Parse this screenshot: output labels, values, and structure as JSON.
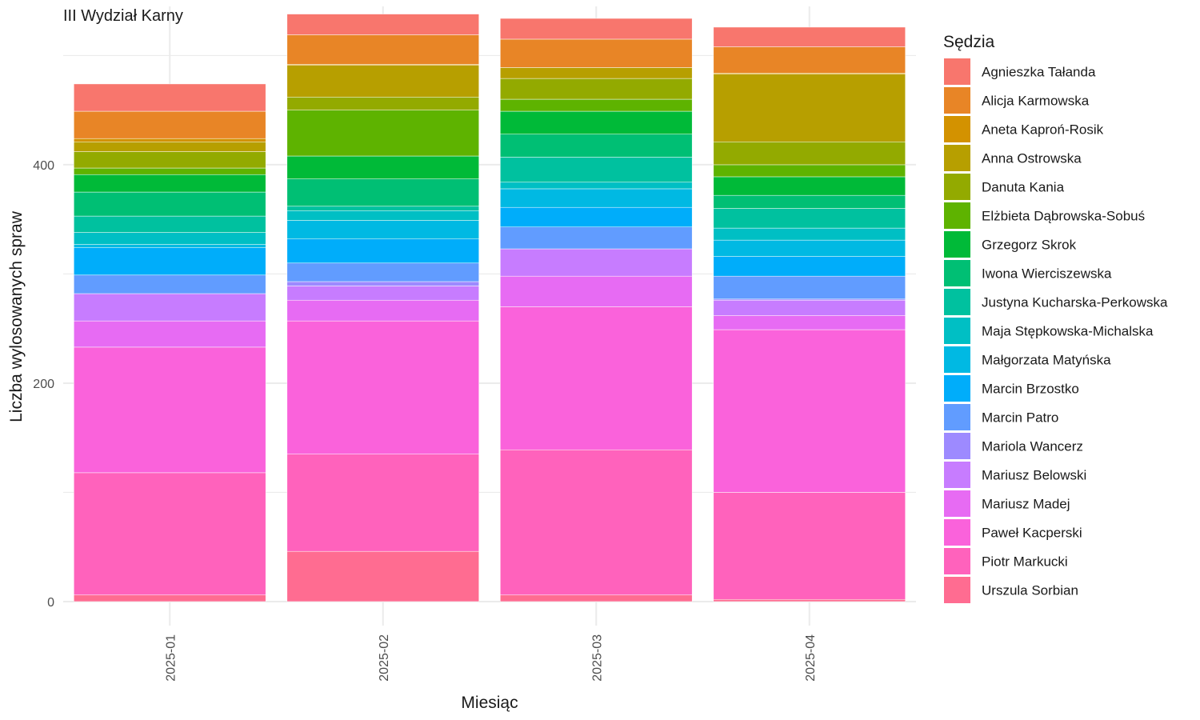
{
  "chart_data": {
    "type": "bar",
    "stacked": true,
    "title": "III Wydział Karny",
    "xlabel": "Miesiąc",
    "ylabel": "Liczba wylosowanych spraw",
    "categories": [
      "2025-01",
      "2025-02",
      "2025-03",
      "2025-04"
    ],
    "ylim": [
      -22,
      545
    ],
    "yticks": [
      0,
      200,
      400
    ],
    "grid": true,
    "legend": {
      "title": "Sędzia",
      "position": "right"
    },
    "series": [
      {
        "name": "Agnieszka Tałanda",
        "color": "#F8766D",
        "values": [
          25,
          19,
          19,
          18
        ]
      },
      {
        "name": "Alicja Karmowska",
        "color": "#E88526",
        "values": [
          25,
          27,
          26,
          24
        ]
      },
      {
        "name": "Aneta Kaproń-Rosik",
        "color": "#D39200",
        "values": [
          3,
          1,
          0,
          1
        ]
      },
      {
        "name": "Anna Ostrowska",
        "color": "#B79F00",
        "values": [
          9,
          29,
          10,
          62
        ]
      },
      {
        "name": "Danuta Kania",
        "color": "#93AA00",
        "values": [
          15,
          12,
          19,
          21
        ]
      },
      {
        "name": "Elżbieta Dąbrowska-Sobuś",
        "color": "#5EB300",
        "values": [
          6,
          42,
          11,
          11
        ]
      },
      {
        "name": "Grzegorz Skrok",
        "color": "#00BA38",
        "values": [
          16,
          21,
          21,
          17
        ]
      },
      {
        "name": "Iwona Wierciszewska",
        "color": "#00BF74",
        "values": [
          22,
          25,
          21,
          12
        ]
      },
      {
        "name": "Justyna Kucharska-Perkowska",
        "color": "#00C19F",
        "values": [
          15,
          4,
          23,
          18
        ]
      },
      {
        "name": "Maja Stępkowska-Michalska",
        "color": "#00BFC4",
        "values": [
          11,
          9,
          6,
          11
        ]
      },
      {
        "name": "Małgorzata Matyńska",
        "color": "#00B9E3",
        "values": [
          3,
          17,
          17,
          15
        ]
      },
      {
        "name": "Marcin Brzostko",
        "color": "#00ADFA",
        "values": [
          25,
          22,
          18,
          18
        ]
      },
      {
        "name": "Marcin Patro",
        "color": "#619CFF",
        "values": [
          17,
          17,
          20,
          21
        ]
      },
      {
        "name": "Mariola Wancerz",
        "color": "#9D8AFF",
        "values": [
          0,
          4,
          0,
          1
        ]
      },
      {
        "name": "Mariusz Belowski",
        "color": "#C77CFF",
        "values": [
          25,
          13,
          25,
          14
        ]
      },
      {
        "name": "Mariusz Madej",
        "color": "#E76BF3",
        "values": [
          24,
          19,
          28,
          13
        ]
      },
      {
        "name": "Paweł Kacperski",
        "color": "#FA62DB",
        "values": [
          115,
          122,
          131,
          149
        ]
      },
      {
        "name": "Piotr Markucki",
        "color": "#FF62BC",
        "values": [
          112,
          89,
          133,
          98
        ]
      },
      {
        "name": "Urszula Sorbian",
        "color": "#FF6C91",
        "values": [
          6,
          46,
          6,
          2
        ]
      }
    ]
  }
}
